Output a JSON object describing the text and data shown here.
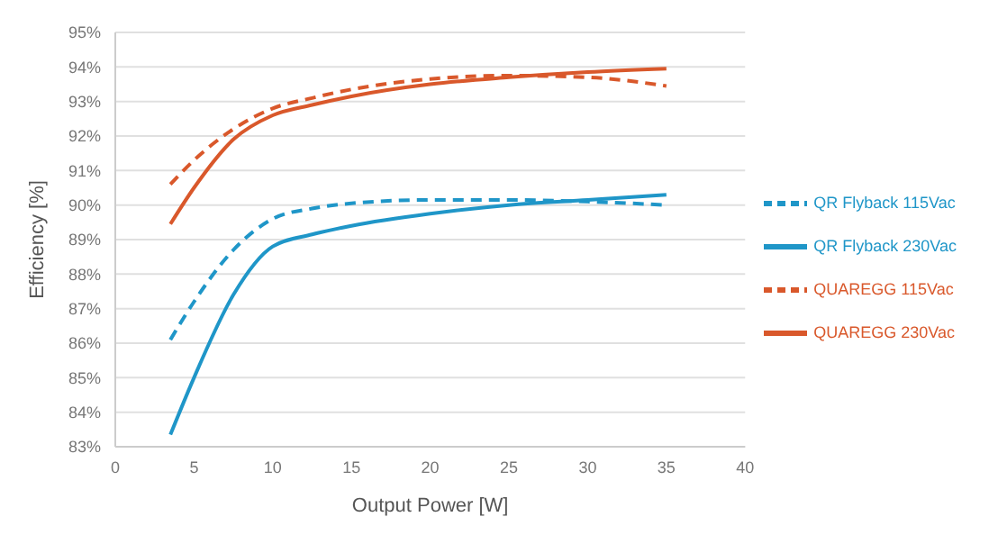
{
  "chart_data": {
    "type": "line",
    "xlabel": "Output Power [W]",
    "ylabel": "Efficiency [%]",
    "x": [
      3.5,
      5,
      7.5,
      10,
      12.5,
      15,
      20,
      25,
      30,
      35
    ],
    "series": [
      {
        "name": "QUAREGG 115Vac",
        "color": "#d9582b",
        "line_style": "dashed",
        "values": [
          90.6,
          91.3,
          92.2,
          92.8,
          93.1,
          93.35,
          93.65,
          93.75,
          93.7,
          93.45
        ]
      },
      {
        "name": "QUAREGG 230Vac",
        "color": "#d9582b",
        "line_style": "solid",
        "values": [
          89.45,
          90.5,
          91.9,
          92.6,
          92.9,
          93.15,
          93.5,
          93.7,
          93.85,
          93.95
        ]
      },
      {
        "name": "QR Flyback 115Vac",
        "color": "#1f96c8",
        "line_style": "dashed",
        "values": [
          86.1,
          87.2,
          88.7,
          89.6,
          89.9,
          90.05,
          90.15,
          90.15,
          90.1,
          90.0
        ]
      },
      {
        "name": "QR Flyback 230Vac",
        "color": "#1f96c8",
        "line_style": "solid",
        "values": [
          83.35,
          85.0,
          87.4,
          88.8,
          89.15,
          89.4,
          89.75,
          90.0,
          90.15,
          90.3
        ]
      }
    ],
    "xlim": [
      0,
      40
    ],
    "xticks": [
      0,
      5,
      10,
      15,
      20,
      25,
      30,
      35,
      40
    ],
    "ylim": [
      83,
      95
    ],
    "yticks": [
      {
        "value": 83,
        "label": "83%"
      },
      {
        "value": 84,
        "label": "84%"
      },
      {
        "value": 85,
        "label": "85%"
      },
      {
        "value": 86,
        "label": "86%"
      },
      {
        "value": 87,
        "label": "87%"
      },
      {
        "value": 88,
        "label": "88%"
      },
      {
        "value": 89,
        "label": "89%"
      },
      {
        "value": 90,
        "label": "90%"
      },
      {
        "value": 91,
        "label": "91%"
      },
      {
        "value": 92,
        "label": "92%"
      },
      {
        "value": 93,
        "label": "93%"
      },
      {
        "value": 94,
        "label": "94%"
      },
      {
        "value": 95,
        "label": "95%"
      }
    ],
    "grid": "y",
    "legend": "right",
    "marker": "none"
  }
}
